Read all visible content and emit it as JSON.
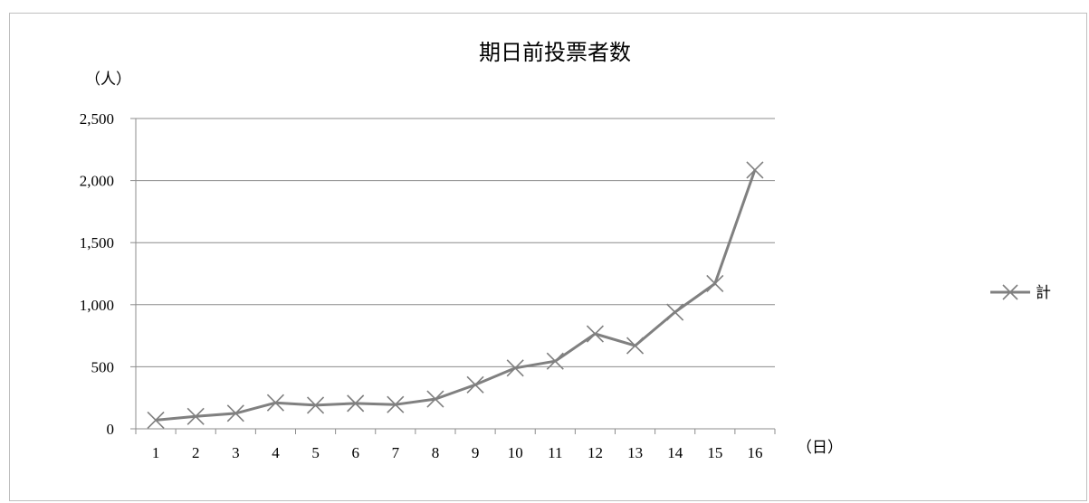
{
  "chart_data": {
    "type": "line",
    "title": "期日前投票者数",
    "ylabel": "（人）",
    "xlabel": "（日）",
    "categories": [
      "1",
      "2",
      "3",
      "4",
      "5",
      "6",
      "7",
      "8",
      "9",
      "10",
      "11",
      "12",
      "13",
      "14",
      "15",
      "16"
    ],
    "ylim": [
      0,
      2500
    ],
    "yticks": [
      0,
      500,
      1000,
      1500,
      2000,
      2500
    ],
    "ytick_labels": [
      "0",
      "500",
      "1,000",
      "1,500",
      "2,000",
      "2,500"
    ],
    "grid": true,
    "legend_position": "right",
    "series": [
      {
        "name": "計",
        "color": "#808080",
        "marker": "x",
        "values": [
          70,
          100,
          125,
          210,
          190,
          205,
          195,
          240,
          355,
          490,
          545,
          765,
          670,
          940,
          1170,
          2085
        ]
      }
    ]
  }
}
